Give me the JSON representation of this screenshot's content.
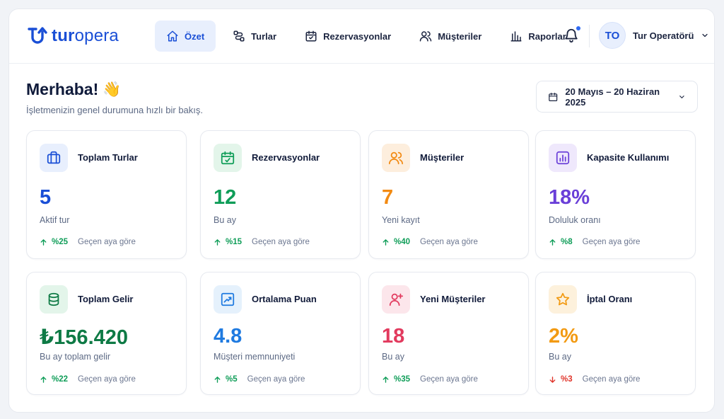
{
  "brand": {
    "part1": "tur",
    "part2": "opera",
    "color": "#1a4fd6"
  },
  "nav": {
    "items": [
      {
        "label": "Özet",
        "icon": "home-icon",
        "active": true
      },
      {
        "label": "Turlar",
        "icon": "route-icon"
      },
      {
        "label": "Rezervasyonlar",
        "icon": "calendar-icon"
      },
      {
        "label": "Müşteriler",
        "icon": "users-icon"
      },
      {
        "label": "Raporlar",
        "icon": "bar-chart-icon"
      }
    ]
  },
  "user": {
    "initials": "TO",
    "name": "Tur Operatörü"
  },
  "greeting": {
    "title": "Merhaba!",
    "emoji": "👋",
    "subtitle": "İşletmenizin genel durumuna hızlı bir bakış."
  },
  "date_range": "20 Mayıs – 20 Haziran 2025",
  "compare_label": "Geçen aya göre",
  "cards": [
    {
      "title": "Toplam Turlar",
      "value": "5",
      "sub": "Aktif tur",
      "trend": "%25",
      "dir": "up",
      "icon": "briefcase-icon",
      "color": "#1a4fd6",
      "bg": "#e8effd"
    },
    {
      "title": "Rezervasyonlar",
      "value": "12",
      "sub": "Bu ay",
      "trend": "%15",
      "dir": "up",
      "icon": "calendar-check-icon",
      "color": "#0f9d58",
      "bg": "#e3f5ea"
    },
    {
      "title": "Müşteriler",
      "value": "7",
      "sub": "Yeni kayıt",
      "trend": "%40",
      "dir": "up",
      "icon": "users-icon",
      "color": "#f28a12",
      "bg": "#fdeedd"
    },
    {
      "title": "Kapasite Kullanımı",
      "value": "18%",
      "sub": "Doluluk oranı",
      "trend": "%8",
      "dir": "up",
      "icon": "bar-chart-icon",
      "color": "#6a3fd8",
      "bg": "#efe8fc"
    },
    {
      "title": "Toplam Gelir",
      "value": "₺156.420",
      "sub": "Bu ay toplam gelir",
      "trend": "%22",
      "dir": "up",
      "icon": "coins-icon",
      "color": "#0e7a45",
      "bg": "#e3f5ea"
    },
    {
      "title": "Ortalama Puan",
      "value": "4.8",
      "sub": "Müşteri memnuniyeti",
      "trend": "%5",
      "dir": "up",
      "icon": "trending-up-icon",
      "color": "#1f7ae0",
      "bg": "#e5f1fc"
    },
    {
      "title": "Yeni Müşteriler",
      "value": "18",
      "sub": "Bu ay",
      "trend": "%35",
      "dir": "up",
      "icon": "user-plus-icon",
      "color": "#e23a5e",
      "bg": "#fce6eb"
    },
    {
      "title": "İptal Oranı",
      "value": "2%",
      "sub": "Bu ay",
      "trend": "%3",
      "dir": "down",
      "icon": "star-icon",
      "color": "#f29a12",
      "bg": "#fdf1dc"
    }
  ],
  "colors": {
    "up": "#0f9d58",
    "down": "#e0352b"
  }
}
